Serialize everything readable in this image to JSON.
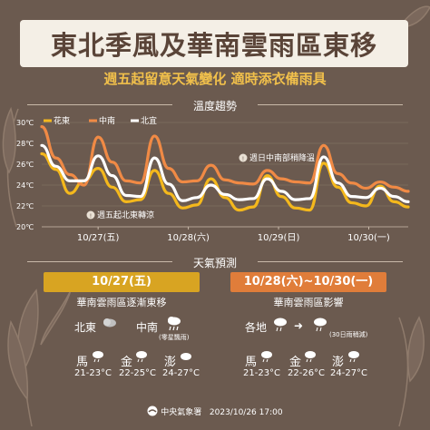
{
  "title": "東北季風及華南雲雨區東移",
  "subtitle": "週五起留意天氣變化  適時添衣備雨具",
  "temp_section_label": "溫度趨勢",
  "forecast_section_label": "天氣預測",
  "chart_data": {
    "type": "line",
    "x": [
      "10/27(五)",
      "10/28(六)",
      "10/29(日)",
      "10/30(一)"
    ],
    "ylim": [
      20,
      30
    ],
    "yticks": [
      "20℃",
      "22℃",
      "24℃",
      "26℃",
      "28℃",
      "30℃"
    ],
    "series": [
      {
        "name": "花東",
        "color": "#f4b81c",
        "points": [
          [
            0,
            27.0
          ],
          [
            0.25,
            25.5
          ],
          [
            0.5,
            23.2
          ],
          [
            0.75,
            24.4
          ],
          [
            1.0,
            25.6
          ],
          [
            1.25,
            23.8
          ],
          [
            1.5,
            22.4
          ],
          [
            1.75,
            22.6
          ],
          [
            2.0,
            25.4
          ],
          [
            2.25,
            23.2
          ],
          [
            2.5,
            21.8
          ],
          [
            2.75,
            22.1
          ],
          [
            3.0,
            24.6
          ],
          [
            3.25,
            22.8
          ],
          [
            3.5,
            21.6
          ],
          [
            3.75,
            21.9
          ],
          [
            4.0,
            24.9
          ],
          [
            4.25,
            22.9
          ],
          [
            4.5,
            21.8
          ],
          [
            4.75,
            21.6
          ],
          [
            5.0,
            26.1
          ],
          [
            5.25,
            23.8
          ],
          [
            5.5,
            22.3
          ],
          [
            5.75,
            22.0
          ],
          [
            6.0,
            23.9
          ],
          [
            6.25,
            22.4
          ],
          [
            6.5,
            21.9
          ]
        ]
      },
      {
        "name": "中南",
        "color": "#f08a45",
        "points": [
          [
            0,
            29.6
          ],
          [
            0.25,
            26.6
          ],
          [
            0.5,
            25.0
          ],
          [
            0.75,
            24.0
          ],
          [
            1.0,
            28.6
          ],
          [
            1.25,
            26.2
          ],
          [
            1.5,
            24.4
          ],
          [
            1.75,
            24.2
          ],
          [
            2.0,
            28.7
          ],
          [
            2.25,
            25.6
          ],
          [
            2.5,
            24.3
          ],
          [
            2.75,
            24.4
          ],
          [
            3.0,
            25.9
          ],
          [
            3.25,
            24.5
          ],
          [
            3.5,
            24.2
          ],
          [
            3.75,
            24.1
          ],
          [
            4.0,
            25.4
          ],
          [
            4.25,
            24.6
          ],
          [
            4.5,
            24.3
          ],
          [
            4.75,
            24.2
          ],
          [
            5.0,
            27.8
          ],
          [
            5.25,
            25.1
          ],
          [
            5.5,
            24.2
          ],
          [
            5.75,
            23.7
          ],
          [
            6.0,
            24.3
          ],
          [
            6.25,
            23.8
          ],
          [
            6.5,
            23.4
          ]
        ]
      },
      {
        "name": "北宜",
        "color": "#ffffff",
        "points": [
          [
            0,
            27.8
          ],
          [
            0.25,
            25.8
          ],
          [
            0.5,
            24.4
          ],
          [
            0.75,
            24.4
          ],
          [
            1.0,
            26.8
          ],
          [
            1.25,
            24.9
          ],
          [
            1.5,
            23.0
          ],
          [
            1.75,
            22.9
          ],
          [
            2.0,
            26.6
          ],
          [
            2.25,
            24.1
          ],
          [
            2.5,
            22.5
          ],
          [
            2.75,
            22.8
          ],
          [
            3.0,
            24.0
          ],
          [
            3.25,
            23.1
          ],
          [
            3.5,
            22.6
          ],
          [
            3.75,
            22.7
          ],
          [
            4.0,
            24.6
          ],
          [
            4.25,
            23.4
          ],
          [
            4.5,
            22.6
          ],
          [
            4.75,
            22.7
          ],
          [
            5.0,
            26.7
          ],
          [
            5.25,
            24.2
          ],
          [
            5.5,
            22.9
          ],
          [
            5.75,
            22.8
          ],
          [
            6.0,
            23.7
          ],
          [
            6.25,
            22.9
          ],
          [
            6.5,
            22.4
          ]
        ]
      }
    ],
    "annotations": [
      "週日中南部稍降溫",
      "週五起北東轉涼"
    ]
  },
  "card1": {
    "date": "10/27(五)",
    "desc": "華南雲雨區逐漸東移",
    "region1": "北東",
    "region2": "中南",
    "region2_note": "(零星飄雨)",
    "cities": [
      {
        "name": "馬",
        "temp": "21-23°C"
      },
      {
        "name": "金",
        "temp": "22-25°C"
      },
      {
        "name": "澎",
        "temp": "24-27°C"
      }
    ]
  },
  "card2": {
    "date": "10/28(六)~10/30(一)",
    "desc": "華南雲雨區影響",
    "region1": "各地",
    "arrow": "➜",
    "note": "(30日雨稍減)",
    "cities": [
      {
        "name": "馬",
        "temp": "21-23°C"
      },
      {
        "name": "金",
        "temp": "22-26°C"
      },
      {
        "name": "澎",
        "temp": "24-27°C"
      }
    ]
  },
  "footer": {
    "agency": "中央氣象署",
    "datetime": "2023/10/26 17:00"
  },
  "colors": {
    "background": "#6b5a4f",
    "title_bg": "#f4efe6",
    "title_text": "#5a4438",
    "accent_yellow": "#f1c04b",
    "card1_header": "#d8a422",
    "card2_header": "#e07d3a"
  }
}
